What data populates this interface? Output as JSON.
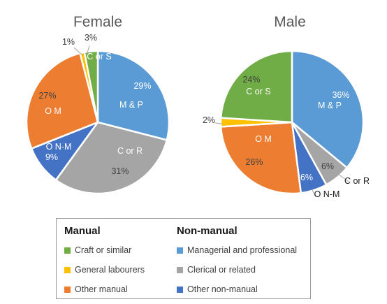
{
  "chart_data": [
    {
      "type": "pie",
      "title": "Female",
      "slices": [
        {
          "category": "Managerial and professional",
          "short_label": "M & P",
          "value": 29,
          "value_label": "29%",
          "color": "#5B9BD5"
        },
        {
          "category": "Clerical or related",
          "short_label": "C or R",
          "value": 31,
          "value_label": "31%",
          "color": "#A5A5A5"
        },
        {
          "category": "Other non-manual",
          "short_label": "O N-M",
          "value": 9,
          "value_label": "9%",
          "color": "#4472C4"
        },
        {
          "category": "Other manual",
          "short_label": "O M",
          "value": 27,
          "value_label": "27%",
          "color": "#ED7D31"
        },
        {
          "category": "General labourers",
          "short_label": "",
          "value": 1,
          "value_label": "1%",
          "color": "#FFC000"
        },
        {
          "category": "Craft or similar",
          "short_label": "C or S",
          "value": 3,
          "value_label": "3%",
          "color": "#70AD47"
        }
      ]
    },
    {
      "type": "pie",
      "title": "Male",
      "slices": [
        {
          "category": "Managerial and professional",
          "short_label": "M & P",
          "value": 36,
          "value_label": "36%",
          "color": "#5B9BD5"
        },
        {
          "category": "Clerical or related",
          "short_label": "C or R",
          "value": 6,
          "value_label": "6%",
          "color": "#A5A5A5"
        },
        {
          "category": "Other non-manual",
          "short_label": "O N-M",
          "value": 6,
          "value_label": "6%",
          "color": "#4472C4"
        },
        {
          "category": "Other manual",
          "short_label": "O M",
          "value": 26,
          "value_label": "26%",
          "color": "#ED7D31"
        },
        {
          "category": "General labourers",
          "short_label": "",
          "value": 2,
          "value_label": "2%",
          "color": "#FFC000"
        },
        {
          "category": "Craft or similar",
          "short_label": "C or S",
          "value": 24,
          "value_label": "24%",
          "color": "#70AD47"
        }
      ]
    }
  ],
  "legend": {
    "groups": [
      {
        "heading": "Manual",
        "items": [
          {
            "label": "Craft or similar",
            "color": "#70AD47"
          },
          {
            "label": "General labourers",
            "color": "#FFC000"
          },
          {
            "label": "Other manual",
            "color": "#ED7D31"
          }
        ]
      },
      {
        "heading": "Non-manual",
        "items": [
          {
            "label": "Managerial and professional",
            "color": "#5B9BD5"
          },
          {
            "label": "Clerical or related",
            "color": "#A5A5A5"
          },
          {
            "label": "Other non-manual",
            "color": "#4472C4"
          }
        ]
      }
    ]
  }
}
